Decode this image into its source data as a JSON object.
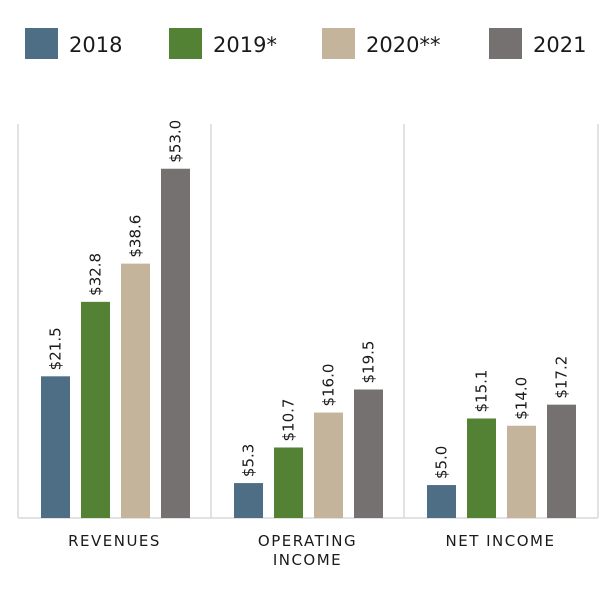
{
  "chart_data": {
    "type": "bar",
    "categories": [
      "REVENUES",
      "OPERATING INCOME",
      "NET INCOME"
    ],
    "category_lines": [
      [
        "REVENUES"
      ],
      [
        "OPERATING",
        "INCOME"
      ],
      [
        "NET INCOME"
      ]
    ],
    "series": [
      {
        "name": "2018",
        "color": "#4e6e85",
        "values": [
          21.5,
          5.3,
          5.0
        ],
        "labels": [
          "$21.5",
          "$5.3",
          "$5.0"
        ]
      },
      {
        "name": "2019*",
        "color": "#548235",
        "values": [
          32.8,
          10.7,
          15.1
        ],
        "labels": [
          "$32.8",
          "$10.7",
          "$15.1"
        ]
      },
      {
        "name": "2020**",
        "color": "#c4b49b",
        "values": [
          38.6,
          16.0,
          14.0
        ],
        "labels": [
          "$38.6",
          "$16.0",
          "$14.0"
        ]
      },
      {
        "name": "2021",
        "color": "#767171",
        "values": [
          53.0,
          19.5,
          17.2
        ],
        "labels": [
          "$53.0",
          "$19.5",
          "$17.2"
        ]
      }
    ],
    "ylim": [
      0,
      60
    ],
    "legend_position": "top",
    "grid": false
  }
}
